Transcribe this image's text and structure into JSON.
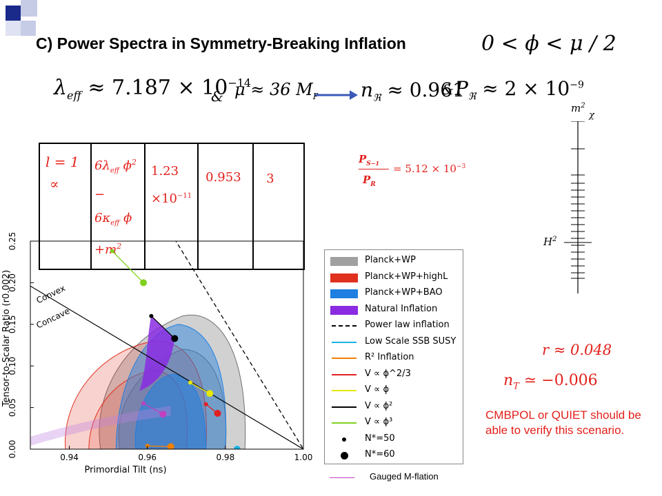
{
  "slide": {
    "title": "C) Power Spectra in Symmetry-Breaking Inflation",
    "title_condition": "0 < ϕ < μ / 2",
    "equation": {
      "lambda_part": "λ",
      "lambda_sub": "eff",
      "lambda_value": "≈ 7.187 × 10",
      "lambda_exp": "−14",
      "amp1": "&",
      "mu_part": "μ ≈ 36 M",
      "mu_sub": "P",
      "ns_part": "n",
      "ns_sub": "ℜ",
      "ns_value": "≈ 0.961",
      "amp2": "&",
      "p_part": "P",
      "p_sub": "ℜ",
      "p_value": "≈ 2 × 10",
      "p_exp": "−9"
    },
    "table": {
      "col1_line1": "l = 1",
      "col1_line2": "∝",
      "col2_line1_a": "6λ",
      "col2_line1_sub": "eff",
      "col2_line1_b": " ϕ",
      "col2_line1_exp": "2",
      "col2_line1_c": " −",
      "col2_line2_a": "6κ",
      "col2_line2_sub": "eff",
      "col2_line2_b": " ϕ",
      "col2_line3": "+m",
      "col2_line3_exp": "2",
      "col3_line1": "1.23",
      "col3_line2": "×10",
      "col3_exp": "−11",
      "col4": "0.953",
      "col5": "3"
    },
    "ratio": {
      "num": "P",
      "num_sub": "S",
      "num_sub2": "−1",
      "den": "P",
      "den_sub": "R",
      "value": "= 5.12 × 10",
      "exp": "−3"
    },
    "mass_scale": {
      "top_label": "m",
      "top_label_exp": "2",
      "chi_label": "χ",
      "bottom_label": "H",
      "bottom_label_exp": "2"
    },
    "r_value": "r ≈ 0.048",
    "nt_value": "n",
    "nt_sub": "T",
    "nt_rest": " ≃ −0.006",
    "note": "CMBPOL or QUIET should be able to verify this scenario.",
    "gauged_label": "Gauged M-flation"
  },
  "chart_data": {
    "type": "scatter",
    "xlabel": "Primordial Tilt (n",
    "xlabel_sub": "s",
    "xlabel_end": ")",
    "ylabel": "Tensor-to-Scalar Ratio (r",
    "ylabel_sub": "0.002",
    "ylabel_end": ")",
    "xlim": [
      0.93,
      1.0
    ],
    "ylim": [
      0.0,
      0.25
    ],
    "xticks": [
      "0.94",
      "0.96",
      "0.98",
      "1.00"
    ],
    "xtick_values": [
      0.94,
      0.96,
      0.98,
      1.0
    ],
    "yticks": [
      "0.00",
      "0.05",
      "0.10",
      "0.15",
      "0.20",
      "0.25"
    ],
    "ytick_values": [
      0.0,
      0.05,
      0.1,
      0.15,
      0.2,
      0.25
    ],
    "annotations": [
      "Convex",
      "Concave"
    ],
    "colors": {
      "planck_wp": "#9a9a9a",
      "planck_highl": "#e0301e",
      "planck_bao": "#1e7fe0",
      "natural": "#8a2be2",
      "power_law": "#000000",
      "ssb_susy": "#19b3e6",
      "r2": "#f08000",
      "phi23": "#e02020",
      "phi1": "#e6e600",
      "phi2": "#000000",
      "phi3": "#80d020",
      "gauged": "#c040c0"
    },
    "legend": [
      {
        "text": "Planck+WP",
        "kind": "fill",
        "color": "#a0a0a0"
      },
      {
        "text": "Planck+WP+highL",
        "kind": "fill",
        "color": "#e0301e"
      },
      {
        "text": "Planck+WP+BAO",
        "kind": "fill",
        "color": "#1e7fe0"
      },
      {
        "text": "Natural Inflation",
        "kind": "fill",
        "color": "#8a2be2"
      },
      {
        "text": "Power law inflation",
        "kind": "dash",
        "color": "#000000"
      },
      {
        "text": "Low Scale SSB SUSY",
        "kind": "line",
        "color": "#19b3e6"
      },
      {
        "text": "R² Inflation",
        "kind": "line",
        "color": "#f08000"
      },
      {
        "text": "V ∝ ϕ^2/3",
        "kind": "line",
        "color": "#e02020"
      },
      {
        "text": "V ∝ ϕ",
        "kind": "line",
        "color": "#e6e600"
      },
      {
        "text": "V ∝ ϕ²",
        "kind": "line",
        "color": "#000000"
      },
      {
        "text": "V ∝ ϕ³",
        "kind": "line",
        "color": "#80d020"
      },
      {
        "text": "N*=50",
        "kind": "dot-small",
        "color": "#000000"
      },
      {
        "text": "N*=60",
        "kind": "dot-large",
        "color": "#000000"
      }
    ],
    "series": [
      {
        "name": "V ∝ ϕ³",
        "color": "#80d020",
        "points": [
          [
            0.951,
            0.238
          ],
          [
            0.959,
            0.2
          ]
        ]
      },
      {
        "name": "V ∝ ϕ²",
        "color": "#000000",
        "points": [
          [
            0.961,
            0.16
          ],
          [
            0.967,
            0.133
          ]
        ]
      },
      {
        "name": "V ∝ ϕ",
        "color": "#e6e600",
        "points": [
          [
            0.971,
            0.08
          ],
          [
            0.976,
            0.067
          ]
        ]
      },
      {
        "name": "V ∝ ϕ^2/3",
        "color": "#e02020",
        "points": [
          [
            0.975,
            0.054
          ],
          [
            0.978,
            0.043
          ]
        ]
      },
      {
        "name": "R² Inflation",
        "color": "#f08000",
        "points": [
          [
            0.96,
            0.004
          ],
          [
            0.966,
            0.003
          ]
        ]
      },
      {
        "name": "Low Scale SSB SUSY",
        "color": "#19b3e6",
        "points": [
          [
            0.983,
            0.0
          ],
          [
            0.983,
            0.0
          ]
        ]
      },
      {
        "name": "Gauged M-flation",
        "color": "#c040c0",
        "points": [
          [
            0.959,
            0.055
          ],
          [
            0.964,
            0.042
          ]
        ]
      }
    ]
  }
}
